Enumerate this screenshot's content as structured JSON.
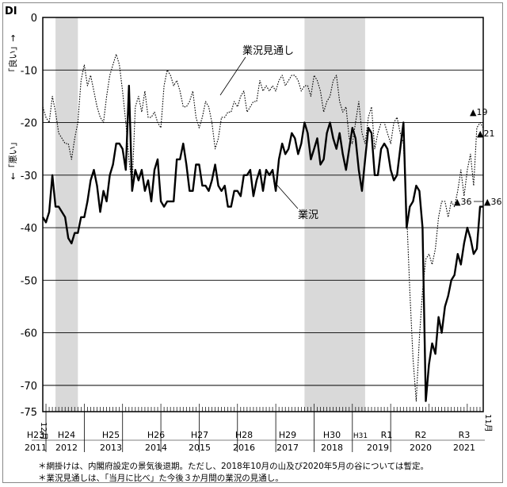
{
  "chart_data": {
    "type": "line",
    "y_axis_title": "DI",
    "y_direction_up": "「良い」→",
    "y_direction_down": "←「悪い」",
    "ylim": [
      -75,
      0
    ],
    "yticks": [
      "0",
      "-10",
      "-20",
      "-30",
      "-40",
      "-50",
      "-60",
      "-70",
      "-75"
    ],
    "ytick_values": [
      0,
      -10,
      -20,
      -30,
      -40,
      -50,
      -60,
      -70,
      -75
    ],
    "grid": true,
    "x_start_label": "12月",
    "x_end_label": "11月",
    "era_labels": [
      "H23",
      "H24",
      "H25",
      "H26",
      "H27",
      "H28",
      "H29",
      "H30",
      "H31",
      "R1",
      "R2",
      "R3"
    ],
    "year_labels": [
      "2011",
      "2012",
      "2013",
      "2014",
      "2015",
      "2016",
      "2017",
      "2018",
      "2019",
      "2020",
      "2021"
    ],
    "recession_shading": [
      {
        "from": "2012-04",
        "to": "2012-11"
      },
      {
        "from": "2018-10",
        "to": "2020-05"
      }
    ],
    "series": [
      {
        "name": "業況",
        "style": "solid",
        "values": [
          -38,
          -39,
          -37,
          -30,
          -36,
          -36,
          -37,
          -38,
          -42,
          -43,
          -41,
          -41,
          -38,
          -38,
          -35,
          -31,
          -29,
          -32,
          -37,
          -33,
          -35,
          -30,
          -28,
          -24,
          -24,
          -25,
          -29,
          -13,
          -33,
          -29,
          -31,
          -29,
          -33,
          -31,
          -35,
          -29,
          -27,
          -35,
          -36,
          -35,
          -35,
          -35,
          -27,
          -27,
          -24,
          -28,
          -33,
          -33,
          -28,
          -28,
          -32,
          -32,
          -33,
          -31,
          -28,
          -32,
          -33,
          -32,
          -36,
          -36,
          -33,
          -33,
          -34,
          -30,
          -30,
          -29,
          -34,
          -31,
          -29,
          -33,
          -29,
          -30,
          -29,
          -33,
          -27,
          -24,
          -26,
          -25,
          -22,
          -23,
          -26,
          -24,
          -20,
          -22,
          -27,
          -25,
          -23,
          -28,
          -27,
          -22,
          -20,
          -23,
          -25,
          -22,
          -26,
          -29,
          -25,
          -21,
          -23,
          -29,
          -33,
          -27,
          -21,
          -22,
          -30,
          -30,
          -25,
          -24,
          -25,
          -29,
          -31,
          -30,
          -25,
          -20,
          -40,
          -36,
          -35,
          -32,
          -33,
          -40,
          -73,
          -66,
          -62,
          -64,
          -57,
          -60,
          -55,
          -53,
          -50,
          -49,
          -45,
          -47,
          -43,
          -40,
          -42,
          -45,
          -44,
          -36,
          -36
        ],
        "end_label": "▲36"
      },
      {
        "name": "業況見通し",
        "style": "dotted",
        "values": [
          -17,
          -19,
          -20,
          -15,
          -18,
          -22,
          -23,
          -24,
          -24,
          -27,
          -23,
          -20,
          -12,
          -9,
          -13,
          -11,
          -14,
          -17,
          -19,
          -20,
          -15,
          -11,
          -9,
          -7,
          -9,
          -14,
          -20,
          -27,
          -32,
          -17,
          -15,
          -18,
          -14,
          -19,
          -19,
          -18,
          -20,
          -21,
          -13,
          -10,
          -11,
          -13,
          -12,
          -14,
          -17,
          -17,
          -16,
          -14,
          -19,
          -21,
          -19,
          -16,
          -17,
          -20,
          -25,
          -23,
          -19,
          -19,
          -18,
          -18,
          -16,
          -17,
          -15,
          -14,
          -18,
          -17,
          -16,
          -16,
          -12,
          -14,
          -13,
          -14,
          -13,
          -14,
          -12,
          -11,
          -13,
          -12,
          -11,
          -11,
          -12,
          -14,
          -13,
          -13,
          -15,
          -11,
          -12,
          -14,
          -18,
          -16,
          -15,
          -12,
          -11,
          -16,
          -18,
          -17,
          -23,
          -24,
          -20,
          -16,
          -22,
          -24,
          -19,
          -17,
          -25,
          -22,
          -20,
          -20,
          -22,
          -24,
          -20,
          -19,
          -22,
          -24,
          -37,
          -52,
          -65,
          -73,
          -61,
          -52,
          -46,
          -45,
          -47,
          -44,
          -38,
          -35,
          -35,
          -38,
          -35,
          -36,
          -33,
          -29,
          -34,
          -29,
          -26,
          -32,
          -21,
          -20,
          -21
        ],
        "end_label": "▲21"
      }
    ],
    "annotations": [
      "▲19",
      "▲21",
      "▲36",
      "▲36"
    ],
    "series_labels": {
      "outlook": "業況見通し",
      "business": "業況"
    },
    "footnotes": [
      "＊網掛けは、内閣府設定の景気後退期。ただし、2018年10月の山及び2020年5月の谷については暫定。",
      "＊業況見通しは、「当月に比べ」た今後３か月間の業況の見通し。"
    ]
  }
}
